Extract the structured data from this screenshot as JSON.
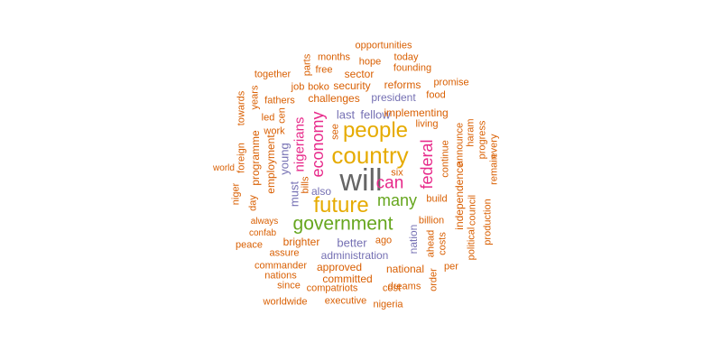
{
  "colors": {
    "orange": "#D95F02",
    "purple": "#7570B3",
    "pink": "#E7298A",
    "green": "#66A61E",
    "gold": "#E6AB02",
    "gray": "#666666"
  },
  "words": [
    {
      "text": "will",
      "color": "gray"
    },
    {
      "text": "country",
      "color": "gold"
    },
    {
      "text": "people",
      "color": "gold"
    },
    {
      "text": "future",
      "color": "gold"
    },
    {
      "text": "government",
      "color": "green"
    },
    {
      "text": "many",
      "color": "green"
    },
    {
      "text": "can",
      "color": "pink"
    },
    {
      "text": "federal",
      "color": "pink"
    },
    {
      "text": "economy",
      "color": "pink"
    },
    {
      "text": "nigerians",
      "color": "pink"
    },
    {
      "text": "young",
      "color": "purple"
    },
    {
      "text": "must",
      "color": "purple"
    },
    {
      "text": "also",
      "color": "purple"
    },
    {
      "text": "last",
      "color": "purple"
    },
    {
      "text": "fellow",
      "color": "purple"
    },
    {
      "text": "president",
      "color": "purple"
    },
    {
      "text": "better",
      "color": "purple"
    },
    {
      "text": "administration",
      "color": "purple"
    },
    {
      "text": "nation",
      "color": "purple"
    },
    {
      "text": "opportunities",
      "color": "orange"
    },
    {
      "text": "parts",
      "color": "orange"
    },
    {
      "text": "months",
      "color": "orange"
    },
    {
      "text": "hope",
      "color": "orange"
    },
    {
      "text": "today",
      "color": "orange"
    },
    {
      "text": "free",
      "color": "orange"
    },
    {
      "text": "founding",
      "color": "orange"
    },
    {
      "text": "together",
      "color": "orange"
    },
    {
      "text": "sector",
      "color": "orange"
    },
    {
      "text": "promise",
      "color": "orange"
    },
    {
      "text": "job",
      "color": "orange"
    },
    {
      "text": "boko",
      "color": "orange"
    },
    {
      "text": "security",
      "color": "orange"
    },
    {
      "text": "reforms",
      "color": "orange"
    },
    {
      "text": "food",
      "color": "orange"
    },
    {
      "text": "towards",
      "color": "orange"
    },
    {
      "text": "years",
      "color": "orange"
    },
    {
      "text": "fathers",
      "color": "orange"
    },
    {
      "text": "challenges",
      "color": "orange"
    },
    {
      "text": "led",
      "color": "orange"
    },
    {
      "text": "cen",
      "color": "orange"
    },
    {
      "text": "implementing",
      "color": "orange"
    },
    {
      "text": "living",
      "color": "orange"
    },
    {
      "text": "see",
      "color": "orange"
    },
    {
      "text": "work",
      "color": "orange"
    },
    {
      "text": "foreign",
      "color": "orange"
    },
    {
      "text": "programme",
      "color": "orange"
    },
    {
      "text": "employment",
      "color": "orange"
    },
    {
      "text": "announce",
      "color": "orange"
    },
    {
      "text": "haram",
      "color": "orange"
    },
    {
      "text": "progress",
      "color": "orange"
    },
    {
      "text": "every",
      "color": "orange"
    },
    {
      "text": "remain",
      "color": "orange"
    },
    {
      "text": "continue",
      "color": "orange"
    },
    {
      "text": "world",
      "color": "orange"
    },
    {
      "text": "six",
      "color": "orange"
    },
    {
      "text": "bills",
      "color": "orange"
    },
    {
      "text": "independence",
      "color": "orange"
    },
    {
      "text": "council",
      "color": "orange"
    },
    {
      "text": "political",
      "color": "orange"
    },
    {
      "text": "production",
      "color": "orange"
    },
    {
      "text": "niger",
      "color": "orange"
    },
    {
      "text": "day",
      "color": "orange"
    },
    {
      "text": "build",
      "color": "orange"
    },
    {
      "text": "billion",
      "color": "orange"
    },
    {
      "text": "always",
      "color": "orange"
    },
    {
      "text": "confab",
      "color": "orange"
    },
    {
      "text": "peace",
      "color": "orange"
    },
    {
      "text": "brighter",
      "color": "orange"
    },
    {
      "text": "ago",
      "color": "orange"
    },
    {
      "text": "ahead",
      "color": "orange"
    },
    {
      "text": "costs",
      "color": "orange"
    },
    {
      "text": "assure",
      "color": "orange"
    },
    {
      "text": "commander",
      "color": "orange"
    },
    {
      "text": "approved",
      "color": "orange"
    },
    {
      "text": "national",
      "color": "orange"
    },
    {
      "text": "per",
      "color": "orange"
    },
    {
      "text": "nations",
      "color": "orange"
    },
    {
      "text": "committed",
      "color": "orange"
    },
    {
      "text": "order",
      "color": "orange"
    },
    {
      "text": "since",
      "color": "orange"
    },
    {
      "text": "compatriots",
      "color": "orange"
    },
    {
      "text": "cost",
      "color": "orange"
    },
    {
      "text": "dreams",
      "color": "orange"
    },
    {
      "text": "worldwide",
      "color": "orange"
    },
    {
      "text": "executive",
      "color": "orange"
    },
    {
      "text": "nigeria",
      "color": "orange"
    }
  ]
}
